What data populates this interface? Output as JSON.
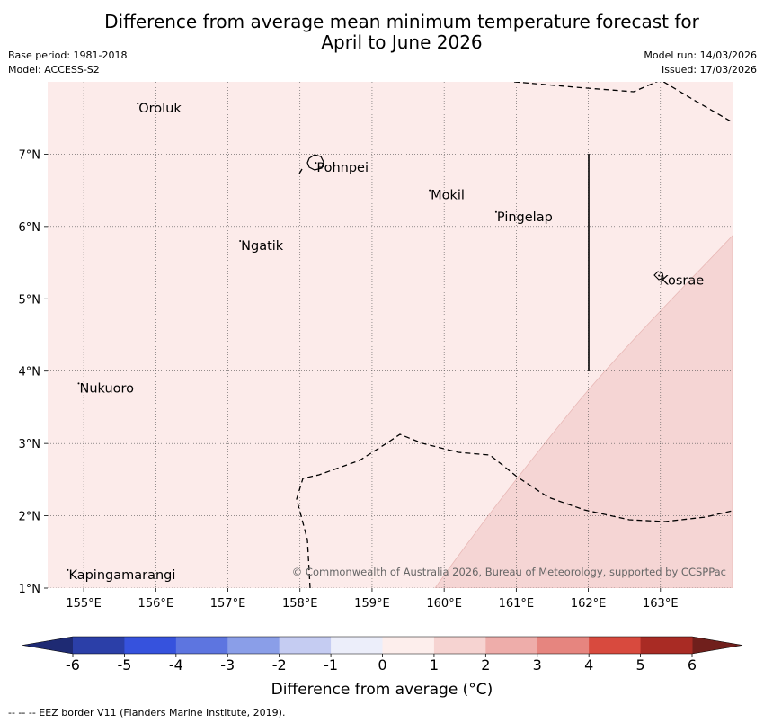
{
  "title": {
    "line1": "Difference from average mean minimum temperature forecast for",
    "line2": "April to June 2026"
  },
  "meta": {
    "base_period": "Base period: 1981-2018",
    "model": "Model: ACCESS-S2",
    "model_run": "Model run: 14/03/2026",
    "issued": "Issued: 17/03/2026"
  },
  "map": {
    "lon_range": [
      154.5,
      164.0
    ],
    "lat_range": [
      1.0,
      8.0
    ],
    "background_color": "#fcebea",
    "warm_region_color": "#f5d5d4",
    "places": [
      {
        "name": "Oroluk",
        "lon": 155.75,
        "lat": 7.7
      },
      {
        "name": "Pohnpei",
        "lon": 158.22,
        "lat": 6.88
      },
      {
        "name": "Mokil",
        "lon": 159.8,
        "lat": 6.5
      },
      {
        "name": "Pingelap",
        "lon": 160.72,
        "lat": 6.2
      },
      {
        "name": "Ngatik",
        "lon": 157.17,
        "lat": 5.8
      },
      {
        "name": "Kosrae",
        "lon": 162.98,
        "lat": 5.32
      },
      {
        "name": "Nukuoro",
        "lon": 154.93,
        "lat": 3.83
      },
      {
        "name": "Kapingamarangi",
        "lon": 154.78,
        "lat": 1.25
      }
    ],
    "lon_ticks": [
      {
        "value": 155,
        "label": "155°E"
      },
      {
        "value": 156,
        "label": "156°E"
      },
      {
        "value": 157,
        "label": "157°E"
      },
      {
        "value": 158,
        "label": "158°E"
      },
      {
        "value": 159,
        "label": "159°E"
      },
      {
        "value": 160,
        "label": "160°E"
      },
      {
        "value": 161,
        "label": "161°E"
      },
      {
        "value": 162,
        "label": "162°E"
      },
      {
        "value": 163,
        "label": "163°E"
      }
    ],
    "lat_ticks": [
      {
        "value": 7,
        "label": "7°N"
      },
      {
        "value": 6,
        "label": "6°N"
      },
      {
        "value": 5,
        "label": "5°N"
      },
      {
        "value": 4,
        "label": "4°N"
      },
      {
        "value": 3,
        "label": "3°N"
      },
      {
        "value": 2,
        "label": "2°N"
      },
      {
        "value": 1,
        "label": "1°N"
      }
    ],
    "copyright": "© Commonwealth of Australia 2026, Bureau of Meteorology, supported by CCSPPac"
  },
  "colorbar": {
    "boundaries": [
      -6,
      -5,
      -4,
      -3,
      -2,
      -1,
      0,
      1,
      2,
      3,
      4,
      5,
      6
    ],
    "tick_labels": [
      "-6",
      "-5",
      "-4",
      "-3",
      "-2",
      "-1",
      "0",
      "1",
      "2",
      "3",
      "4",
      "5",
      "6"
    ],
    "colors": [
      "#2b3fa8",
      "#3652dd",
      "#5d75e0",
      "#8a9ee8",
      "#c5ccf2",
      "#eceefa",
      "#fdeeec",
      "#f6d3d1",
      "#eeadaa",
      "#e6857f",
      "#d84a3e",
      "#a92b24"
    ],
    "under_color": "#1e2a73",
    "over_color": "#701f1c",
    "label": "Difference from average (°C)"
  },
  "footer": "--  --  -- EEZ border V11 (Flanders Marine Institute, 2019)."
}
